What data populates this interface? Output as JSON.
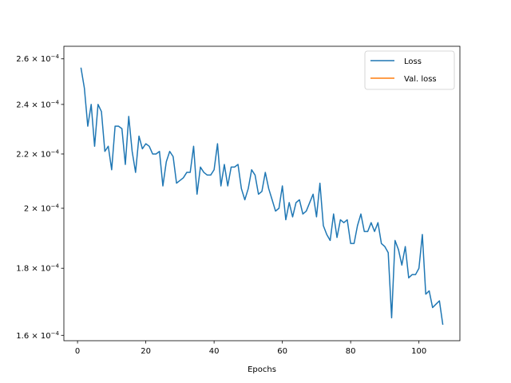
{
  "chart_data": {
    "type": "line",
    "title": "",
    "xlabel": "Epochs",
    "ylabel": "",
    "yscale": "log",
    "xlim": [
      -4,
      112
    ],
    "ylim": [
      0.0001585,
      0.0002658
    ],
    "grid": false,
    "legend_position": "top-right",
    "x_ticks": [
      {
        "value": 0,
        "label": "0"
      },
      {
        "value": 20,
        "label": "20"
      },
      {
        "value": 40,
        "label": "40"
      },
      {
        "value": 60,
        "label": "60"
      },
      {
        "value": 80,
        "label": "80"
      },
      {
        "value": 100,
        "label": "100"
      }
    ],
    "y_ticks": [
      {
        "value": 0.00016,
        "mantissa": "1.6",
        "exponent": "−4"
      },
      {
        "value": 0.00018,
        "mantissa": "1.8",
        "exponent": "−4"
      },
      {
        "value": 0.0002,
        "mantissa": "2",
        "exponent": "−4"
      },
      {
        "value": 0.00022,
        "mantissa": "2.2",
        "exponent": "−4"
      },
      {
        "value": 0.00024,
        "mantissa": "2.4",
        "exponent": "−4"
      },
      {
        "value": 0.00026,
        "mantissa": "2.6",
        "exponent": "−4"
      }
    ],
    "series": [
      {
        "name": "Loss",
        "color": "#1f77b4",
        "x": [
          1,
          2,
          3,
          4,
          5,
          6,
          7,
          8,
          9,
          10,
          11,
          12,
          13,
          14,
          15,
          16,
          17,
          18,
          19,
          20,
          21,
          22,
          23,
          24,
          25,
          26,
          27,
          28,
          29,
          30,
          31,
          32,
          33,
          34,
          35,
          36,
          37,
          38,
          39,
          40,
          41,
          42,
          43,
          44,
          45,
          46,
          47,
          48,
          49,
          50,
          51,
          52,
          53,
          54,
          55,
          56,
          57,
          58,
          59,
          60,
          61,
          62,
          63,
          64,
          65,
          66,
          67,
          68,
          69,
          70,
          71,
          72,
          73,
          74,
          75,
          76,
          77,
          78,
          79,
          80,
          81,
          82,
          83,
          84,
          85,
          86,
          87,
          88,
          89,
          90,
          91,
          92,
          93,
          94,
          95,
          96,
          97,
          98,
          99,
          100,
          101,
          102,
          103,
          104,
          105,
          106,
          107
        ],
        "y": [
          0.000256,
          0.000247,
          0.000231,
          0.00024,
          0.000223,
          0.00024,
          0.000237,
          0.000221,
          0.000223,
          0.000214,
          0.000231,
          0.000231,
          0.00023,
          0.000216,
          0.000235,
          0.000221,
          0.000213,
          0.000227,
          0.000222,
          0.000224,
          0.000223,
          0.00022,
          0.00022,
          0.000221,
          0.000208,
          0.000217,
          0.000221,
          0.000219,
          0.000209,
          0.00021,
          0.000211,
          0.000213,
          0.000213,
          0.000223,
          0.000205,
          0.000215,
          0.000213,
          0.000212,
          0.000212,
          0.000214,
          0.000224,
          0.000208,
          0.000216,
          0.000208,
          0.000215,
          0.000215,
          0.000216,
          0.000207,
          0.000203,
          0.000207,
          0.000214,
          0.000212,
          0.000205,
          0.000206,
          0.000213,
          0.000207,
          0.000203,
          0.000199,
          0.0002,
          0.000208,
          0.000196,
          0.000202,
          0.000197,
          0.000202,
          0.000203,
          0.000198,
          0.000199,
          0.000202,
          0.000205,
          0.000197,
          0.000209,
          0.000194,
          0.000191,
          0.000189,
          0.000198,
          0.00019,
          0.000196,
          0.000195,
          0.000196,
          0.000188,
          0.000188,
          0.000194,
          0.000198,
          0.000192,
          0.000192,
          0.000195,
          0.000192,
          0.000195,
          0.000188,
          0.000187,
          0.000185,
          0.000165,
          0.000189,
          0.000186,
          0.000181,
          0.000187,
          0.000177,
          0.000178,
          0.000178,
          0.00018,
          0.000191,
          0.000172,
          0.000173,
          0.000168,
          0.000169,
          0.00017,
          0.000163
        ]
      },
      {
        "name": "Val. loss",
        "color": "#ff7f0e",
        "x": [],
        "y": []
      }
    ]
  }
}
